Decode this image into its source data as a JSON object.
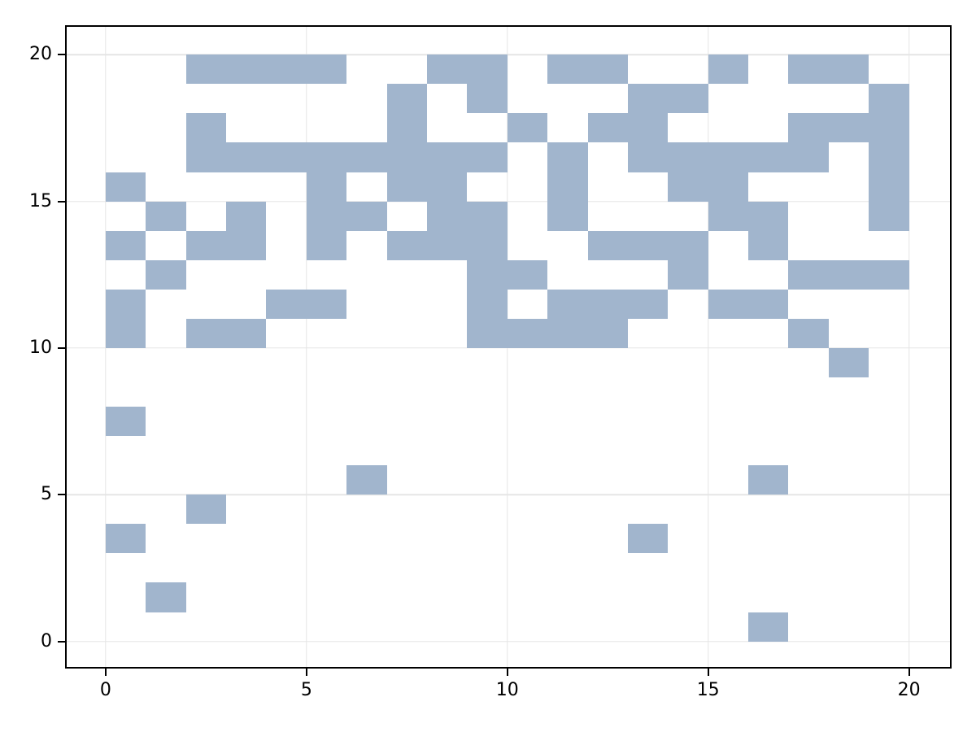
{
  "chart_data": {
    "type": "heatmap",
    "title": "",
    "xlabel": "",
    "ylabel": "",
    "x_ticks": [
      0,
      5,
      10,
      15,
      20
    ],
    "y_ticks": [
      0,
      5,
      10,
      15,
      20
    ],
    "xlim": [
      -0.97,
      21.02
    ],
    "ylim": [
      -0.87,
      20.95
    ],
    "grid": true,
    "legend": false,
    "cell_size": 1,
    "colors": {
      "cell_fill": "#a1b5cd",
      "gridline": "#e5e5e5",
      "spine": "#000000",
      "tick_label": "#000000",
      "background": "#ffffff"
    },
    "cells": [
      [
        2,
        19
      ],
      [
        3,
        19
      ],
      [
        4,
        19
      ],
      [
        5,
        19
      ],
      [
        8,
        19
      ],
      [
        9,
        19
      ],
      [
        11,
        19
      ],
      [
        12,
        19
      ],
      [
        15,
        19
      ],
      [
        17,
        19
      ],
      [
        18,
        19
      ],
      [
        7,
        18
      ],
      [
        9,
        18
      ],
      [
        13,
        18
      ],
      [
        14,
        18
      ],
      [
        19,
        18
      ],
      [
        2,
        17
      ],
      [
        7,
        17
      ],
      [
        10,
        17
      ],
      [
        12,
        17
      ],
      [
        13,
        17
      ],
      [
        17,
        17
      ],
      [
        18,
        17
      ],
      [
        19,
        17
      ],
      [
        2,
        16
      ],
      [
        3,
        16
      ],
      [
        4,
        16
      ],
      [
        5,
        16
      ],
      [
        6,
        16
      ],
      [
        7,
        16
      ],
      [
        8,
        16
      ],
      [
        9,
        16
      ],
      [
        11,
        16
      ],
      [
        13,
        16
      ],
      [
        14,
        16
      ],
      [
        15,
        16
      ],
      [
        16,
        16
      ],
      [
        17,
        16
      ],
      [
        19,
        16
      ],
      [
        0,
        15
      ],
      [
        5,
        15
      ],
      [
        7,
        15
      ],
      [
        8,
        15
      ],
      [
        11,
        15
      ],
      [
        14,
        15
      ],
      [
        15,
        15
      ],
      [
        19,
        15
      ],
      [
        1,
        14
      ],
      [
        3,
        14
      ],
      [
        5,
        14
      ],
      [
        6,
        14
      ],
      [
        8,
        14
      ],
      [
        9,
        14
      ],
      [
        11,
        14
      ],
      [
        15,
        14
      ],
      [
        16,
        14
      ],
      [
        19,
        14
      ],
      [
        0,
        13
      ],
      [
        2,
        13
      ],
      [
        3,
        13
      ],
      [
        5,
        13
      ],
      [
        7,
        13
      ],
      [
        8,
        13
      ],
      [
        9,
        13
      ],
      [
        12,
        13
      ],
      [
        13,
        13
      ],
      [
        14,
        13
      ],
      [
        16,
        13
      ],
      [
        1,
        12
      ],
      [
        9,
        12
      ],
      [
        10,
        12
      ],
      [
        14,
        12
      ],
      [
        17,
        12
      ],
      [
        18,
        12
      ],
      [
        19,
        12
      ],
      [
        0,
        11
      ],
      [
        4,
        11
      ],
      [
        5,
        11
      ],
      [
        9,
        11
      ],
      [
        11,
        11
      ],
      [
        12,
        11
      ],
      [
        13,
        11
      ],
      [
        15,
        11
      ],
      [
        16,
        11
      ],
      [
        0,
        10
      ],
      [
        2,
        10
      ],
      [
        3,
        10
      ],
      [
        9,
        10
      ],
      [
        10,
        10
      ],
      [
        11,
        10
      ],
      [
        12,
        10
      ],
      [
        17,
        10
      ],
      [
        18,
        9
      ],
      [
        0,
        7
      ],
      [
        6,
        5
      ],
      [
        16,
        5
      ],
      [
        2,
        4
      ],
      [
        0,
        3
      ],
      [
        13,
        3
      ],
      [
        1,
        1
      ],
      [
        16,
        0
      ]
    ]
  }
}
